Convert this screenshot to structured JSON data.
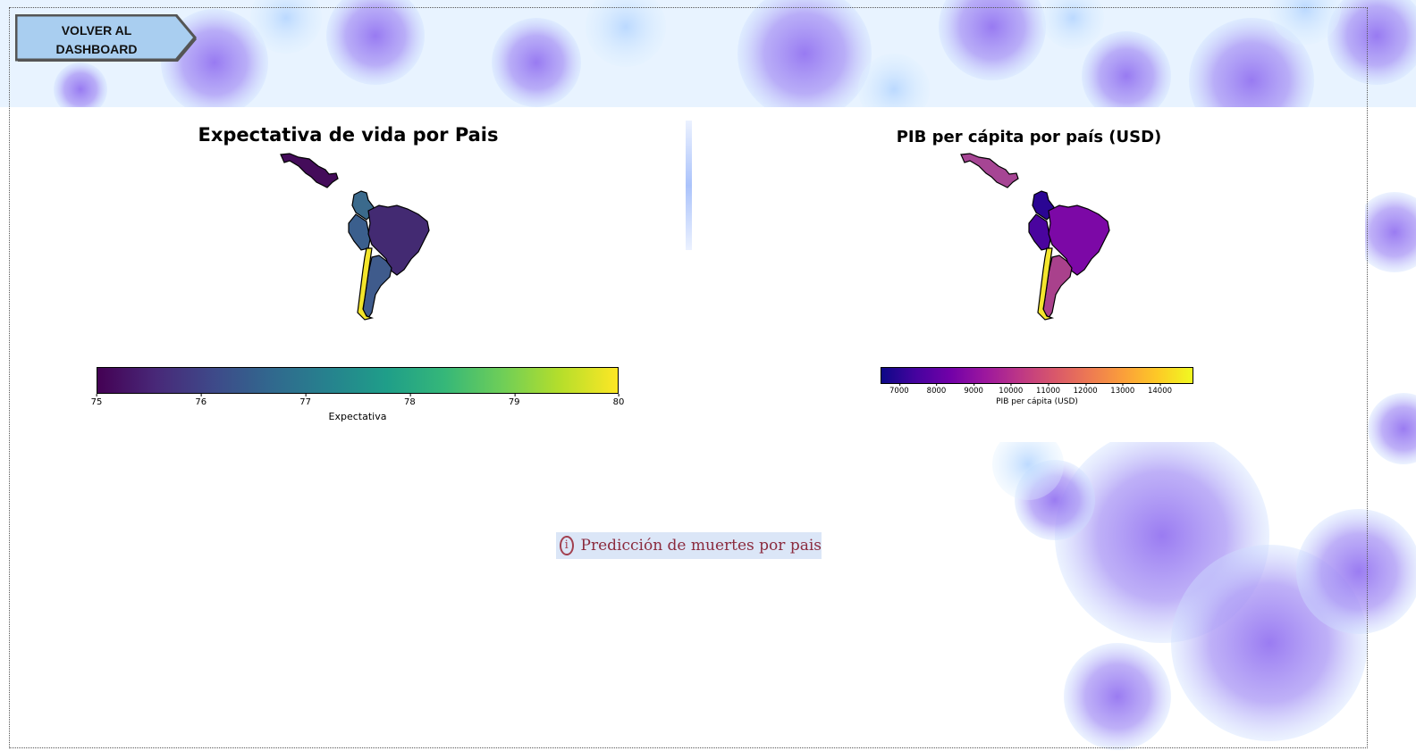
{
  "nav": {
    "back_button_line1": "VOLVER AL",
    "back_button_line2": "DASHBOARD"
  },
  "link": {
    "prediction_label": "Predicción de muertes por pais",
    "icon": "info-circle-icon"
  },
  "theme": {
    "accent_link": "#8b2b3e",
    "link_background": "#dbe6f7",
    "virus_color": "#9b7cf0"
  },
  "chart_data": [
    {
      "type": "choropleth",
      "title": "Expectativa de vida por Pais",
      "colormap": "viridis",
      "colorbar_label": "Expectativa",
      "colorbar_range": [
        75,
        80
      ],
      "ticks": [
        "75",
        "76",
        "77",
        "78",
        "79",
        "80"
      ],
      "regions": [
        {
          "name": "Mexico",
          "color": "#440c5a"
        },
        {
          "name": "Colombia",
          "color": "#3b6a8c"
        },
        {
          "name": "Peru",
          "color": "#3b5f8d"
        },
        {
          "name": "Brazil",
          "color": "#432a72"
        },
        {
          "name": "Argentina",
          "color": "#3f5b8c"
        },
        {
          "name": "Chile",
          "color": "#f3e52b"
        }
      ]
    },
    {
      "type": "choropleth",
      "title": "PIB per cápita por país (USD)",
      "colormap": "plasma",
      "colorbar_label": "PIB per cápita (USD)",
      "colorbar_range": [
        6500,
        14900
      ],
      "ticks": [
        "7000",
        "8000",
        "9000",
        "10000",
        "11000",
        "12000",
        "13000",
        "14000"
      ],
      "regions": [
        {
          "name": "Mexico",
          "color": "#a64594"
        },
        {
          "name": "Colombia",
          "color": "#2a0593"
        },
        {
          "name": "Peru",
          "color": "#4a049e"
        },
        {
          "name": "Brazil",
          "color": "#7c08a6"
        },
        {
          "name": "Argentina",
          "color": "#a9418c"
        },
        {
          "name": "Chile",
          "color": "#f4e62e"
        }
      ]
    }
  ]
}
